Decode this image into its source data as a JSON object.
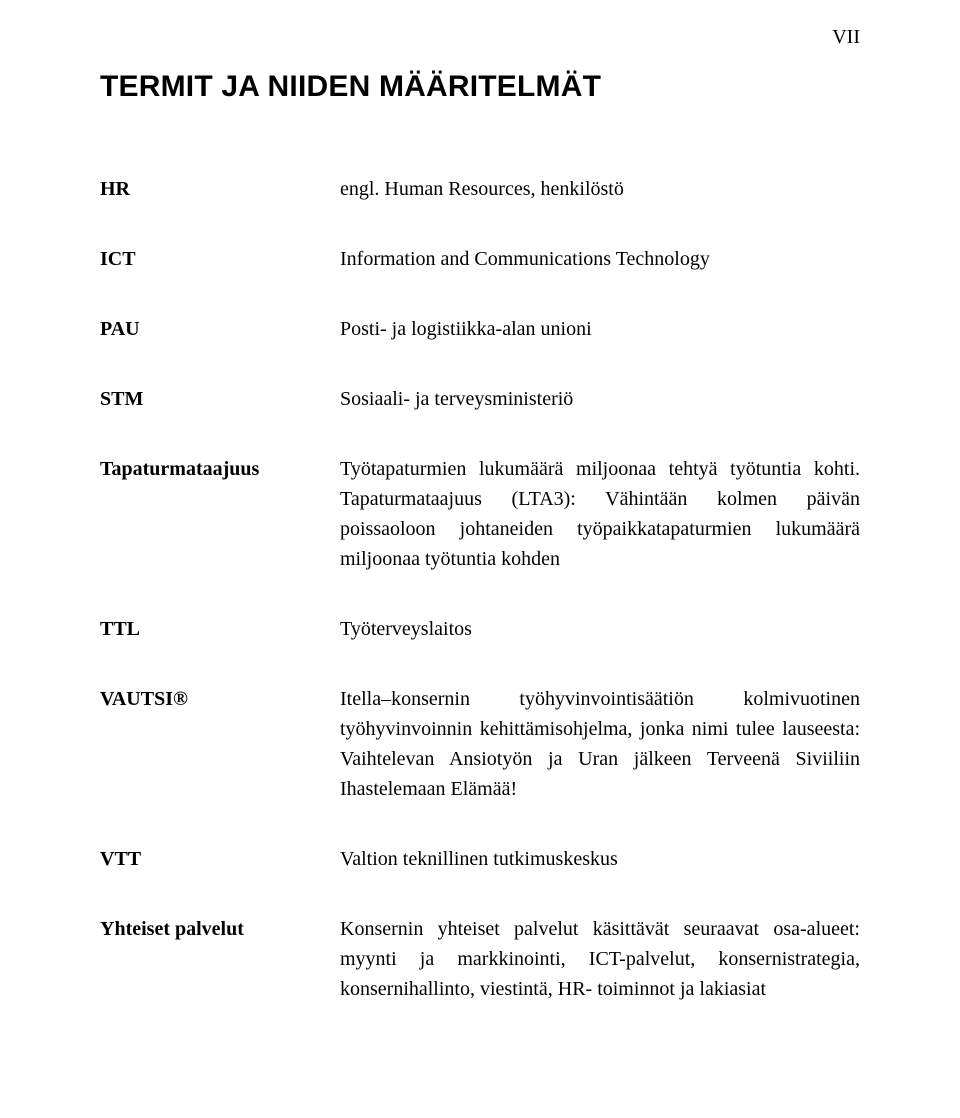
{
  "page_number": "VII",
  "title": "TERMIT JA NIIDEN MÄÄRITELMÄT",
  "terms": [
    {
      "label": "HR",
      "definition": "engl. Human Resources, henkilöstö"
    },
    {
      "label": "ICT",
      "definition": "Information and Communications Technology"
    },
    {
      "label": "PAU",
      "definition": "Posti- ja logistiikka-alan unioni"
    },
    {
      "label": "STM",
      "definition": "Sosiaali- ja terveysministeriö"
    },
    {
      "label": "Tapaturmataajuus",
      "definition": "Työtapaturmien lukumäärä miljoonaa tehtyä työtuntia kohti. Tapaturmataajuus (LTA3): Vähintään kolmen päivän poissaoloon johtaneiden työpaikkatapaturmien lukumäärä miljoonaa työtuntia kohden"
    },
    {
      "label": "TTL",
      "definition": "Työterveyslaitos"
    },
    {
      "label": "VAUTSI®",
      "definition": "Itella–konsernin työhyvinvointisäätiön kolmivuotinen työhyvinvoinnin kehittämisohjelma, jonka nimi tulee lauseesta: Vaihtelevan Ansiotyön ja Uran jälkeen Terveenä Siviiliin Ihastelemaan Elämää!"
    },
    {
      "label": "VTT",
      "definition": "Valtion teknillinen tutkimuskeskus"
    },
    {
      "label": "Yhteiset palvelut",
      "definition": "Konsernin yhteiset palvelut käsittävät seuraavat osa-alueet: myynti ja markkinointi, ICT-palvelut, konsernistrategia, konsernihallinto, viestintä, HR- toiminnot ja lakiasiat"
    }
  ]
}
